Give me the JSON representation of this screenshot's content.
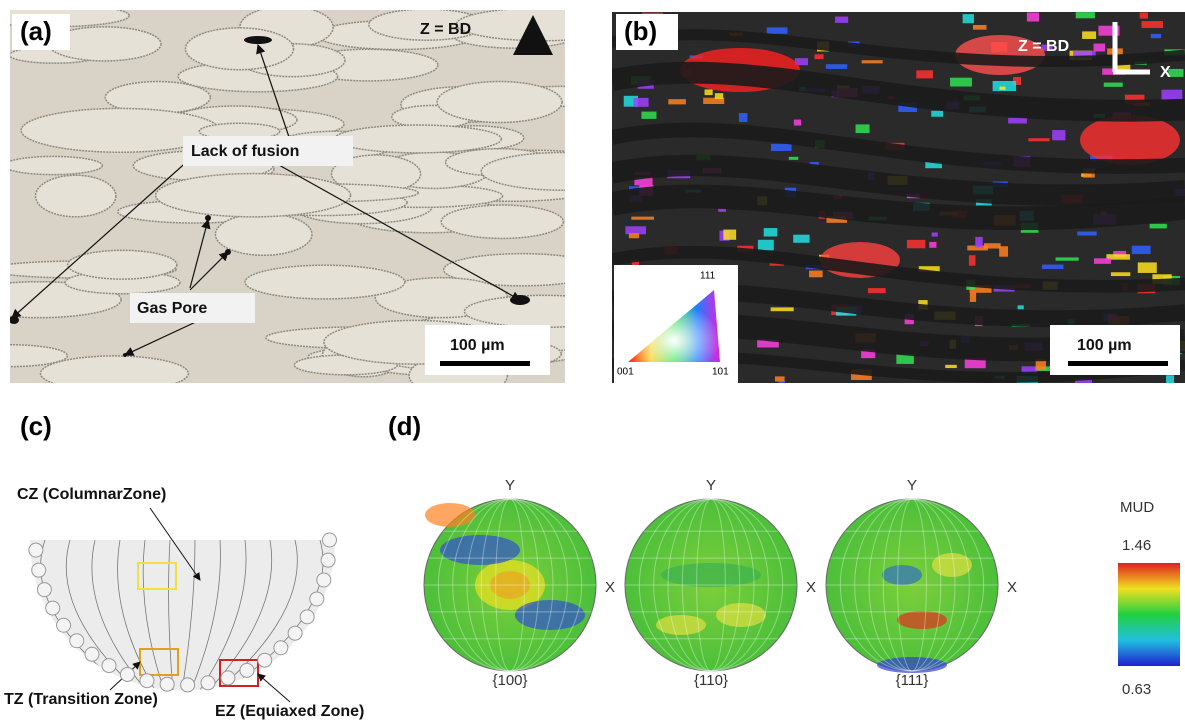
{
  "panels": {
    "a": {
      "label": "(a)",
      "direction": "Z = BD",
      "annotations": [
        "Lack of fusion",
        "Gas Pore"
      ],
      "scale_bar": "100 µm"
    },
    "b": {
      "label": "(b)",
      "direction": "Z = BD",
      "x_axis": "X",
      "ipf_corners": [
        "111",
        "001",
        "101"
      ],
      "scale_bar": "100 µm"
    },
    "c": {
      "label": "(c)",
      "zones": [
        "CZ (ColumnarZone)",
        "TZ (Transition Zone)",
        "EZ (Equiaxed Zone)"
      ]
    },
    "d": {
      "label": "(d)",
      "pole_figures": [
        {
          "name": "{100}",
          "y_axis": "Y",
          "x_axis": "X"
        },
        {
          "name": "{110}",
          "y_axis": "Y",
          "x_axis": "X"
        },
        {
          "name": "{111}",
          "y_axis": "Y",
          "x_axis": "X"
        }
      ],
      "colorbar": {
        "title": "MUD",
        "max": 1.46,
        "min": 0.63
      }
    }
  }
}
